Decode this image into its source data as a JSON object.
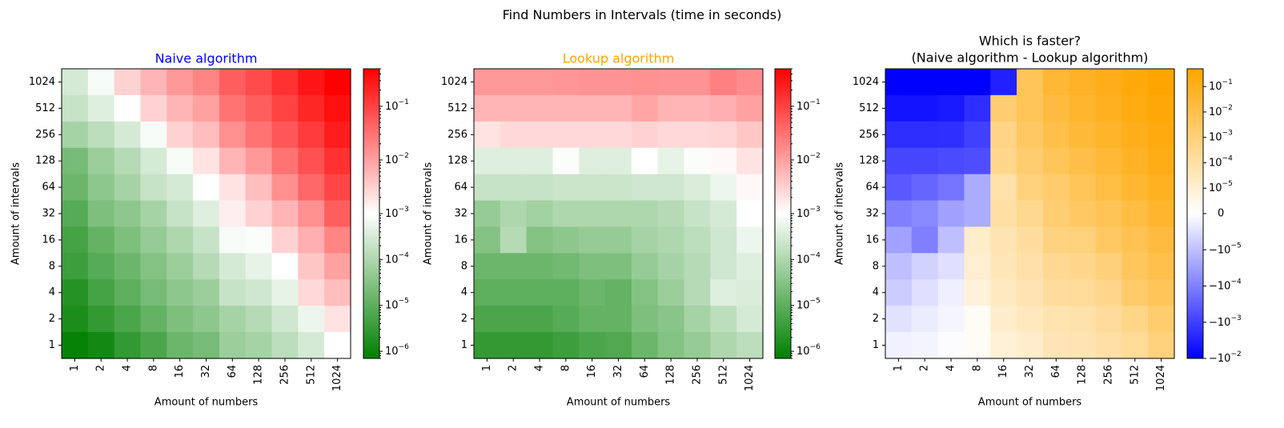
{
  "suptitle": "Find Numbers in Intervals (time in seconds)",
  "colors": {
    "naive_title": "#0000ff",
    "lookup_title": "#ffa500",
    "green": "#008000",
    "red": "#ff0000",
    "blue": "#0000ff",
    "orange": "#ffa500",
    "white": "#ffffff"
  },
  "chart_data": [
    {
      "type": "heatmap",
      "title": "Naive algorithm",
      "xlabel": "Amount of numbers",
      "ylabel": "Amount of intervals",
      "x_categories": [
        "1",
        "2",
        "4",
        "8",
        "16",
        "32",
        "64",
        "128",
        "256",
        "512",
        "1024"
      ],
      "y_categories": [
        "1024",
        "512",
        "256",
        "128",
        "64",
        "32",
        "16",
        "8",
        "4",
        "2",
        "1"
      ],
      "color_scale": "log",
      "cmap": [
        "#008000",
        "#ffffff",
        "#ff0000"
      ],
      "vmin": 7e-07,
      "vmax": 0.5,
      "colorbar_ticks": [
        "10^-6",
        "10^-5",
        "10^-4",
        "10^-3",
        "10^-2",
        "10^-1"
      ],
      "values": [
        [
          0.0003,
          0.0008,
          0.003,
          0.006,
          0.012,
          0.02,
          0.05,
          0.08,
          0.15,
          0.3,
          0.5
        ],
        [
          0.0002,
          0.0004,
          0.001,
          0.003,
          0.006,
          0.01,
          0.03,
          0.05,
          0.1,
          0.2,
          0.35
        ],
        [
          8e-05,
          0.00015,
          0.0003,
          0.0008,
          0.003,
          0.005,
          0.015,
          0.03,
          0.06,
          0.12,
          0.25
        ],
        [
          2e-05,
          6e-05,
          0.00012,
          0.0003,
          0.0008,
          0.002,
          0.006,
          0.012,
          0.03,
          0.07,
          0.15
        ],
        [
          1.5e-05,
          4e-05,
          8e-05,
          0.0002,
          0.0003,
          0.001,
          0.002,
          0.005,
          0.015,
          0.04,
          0.09
        ],
        [
          8e-06,
          2.5e-05,
          4e-05,
          8e-05,
          0.0002,
          0.0004,
          0.0015,
          0.003,
          0.006,
          0.015,
          0.05
        ],
        [
          5e-06,
          1.2e-05,
          2.5e-05,
          5e-05,
          0.0001,
          0.0002,
          0.0008,
          0.0009,
          0.003,
          0.007,
          0.02
        ],
        [
          4e-06,
          8e-06,
          1.5e-05,
          3e-05,
          6e-05,
          0.00012,
          0.0003,
          0.0005,
          0.001,
          0.004,
          0.01
        ],
        [
          2e-06,
          5e-06,
          1e-05,
          2e-05,
          4e-05,
          6e-05,
          0.0002,
          0.00025,
          0.0005,
          0.0025,
          0.005
        ],
        [
          1.5e-06,
          3e-06,
          6e-06,
          1.2e-05,
          2.5e-05,
          4e-05,
          8e-05,
          0.00012,
          0.00025,
          0.0006,
          0.002
        ],
        [
          8e-07,
          1.2e-06,
          3e-06,
          6e-06,
          1.5e-05,
          2e-05,
          6e-05,
          8e-05,
          0.00015,
          0.0003,
          0.001
        ]
      ]
    },
    {
      "type": "heatmap",
      "title": "Lookup algorithm",
      "xlabel": "Amount of numbers",
      "ylabel": "Amount of intervals",
      "x_categories": [
        "1",
        "2",
        "4",
        "8",
        "16",
        "32",
        "64",
        "128",
        "256",
        "512",
        "1024"
      ],
      "y_categories": [
        "1024",
        "512",
        "256",
        "128",
        "64",
        "32",
        "16",
        "8",
        "4",
        "2",
        "1"
      ],
      "color_scale": "log",
      "cmap": [
        "#008000",
        "#ffffff",
        "#ff0000"
      ],
      "vmin": 7e-07,
      "vmax": 0.5,
      "colorbar_ticks": [
        "10^-6",
        "10^-5",
        "10^-4",
        "10^-3",
        "10^-2",
        "10^-1"
      ],
      "values": [
        [
          0.012,
          0.012,
          0.012,
          0.013,
          0.014,
          0.014,
          0.015,
          0.014,
          0.014,
          0.022,
          0.016
        ],
        [
          0.006,
          0.006,
          0.006,
          0.006,
          0.006,
          0.006,
          0.009,
          0.006,
          0.006,
          0.007,
          0.01
        ],
        [
          0.002,
          0.0025,
          0.0025,
          0.0025,
          0.0025,
          0.0025,
          0.003,
          0.0025,
          0.0025,
          0.0028,
          0.004
        ],
        [
          0.0004,
          0.0004,
          0.0004,
          0.0009,
          0.0004,
          0.0004,
          0.001,
          0.0005,
          0.0009,
          0.0012,
          0.002
        ],
        [
          0.0002,
          0.0002,
          0.0002,
          0.00022,
          0.00022,
          0.00022,
          0.00025,
          0.00025,
          0.00035,
          0.0006,
          0.0012
        ],
        [
          5e-05,
          0.0001,
          7e-05,
          0.0001,
          0.0001,
          0.0001,
          0.0001,
          0.00012,
          0.0002,
          0.0003,
          0.001
        ],
        [
          3e-05,
          0.00012,
          3e-05,
          4e-05,
          5e-05,
          5e-05,
          8e-05,
          0.0001,
          0.00015,
          0.00025,
          0.0006
        ],
        [
          1.5e-05,
          1.5e-05,
          1.5e-05,
          1.8e-05,
          2.5e-05,
          2.5e-05,
          5e-05,
          8e-05,
          0.00012,
          0.00025,
          0.0004
        ],
        [
          1e-05,
          1e-05,
          1e-05,
          1e-05,
          1.5e-05,
          1.2e-05,
          3e-05,
          6e-05,
          0.00012,
          0.0004,
          0.00035
        ],
        [
          6e-06,
          6e-06,
          6e-06,
          8e-06,
          1.2e-05,
          1.2e-05,
          2.5e-05,
          3.5e-05,
          8e-05,
          0.00015,
          0.0003
        ],
        [
          3e-06,
          3e-06,
          3e-06,
          4e-06,
          6e-06,
          7e-06,
          1.5e-05,
          3e-05,
          5e-05,
          0.0001,
          0.00015
        ]
      ]
    },
    {
      "type": "heatmap",
      "title": "Which is faster?\n(Naive algorithm - Lookup algorithm)",
      "xlabel": "Amount of numbers",
      "ylabel": "Amount of intervals",
      "x_categories": [
        "1",
        "2",
        "4",
        "8",
        "16",
        "32",
        "64",
        "128",
        "256",
        "512",
        "1024"
      ],
      "y_categories": [
        "1024",
        "512",
        "256",
        "128",
        "64",
        "32",
        "16",
        "8",
        "4",
        "2",
        "1"
      ],
      "color_scale": "symlog",
      "linthresh": 1e-05,
      "cmap": [
        "#0000ff",
        "#ffffff",
        "#ffa500"
      ],
      "vmin": -0.01,
      "vmax": 0.5,
      "colorbar_ticks": [
        "10^-1",
        "10^-2",
        "10^-3",
        "10^-4",
        "10^-5",
        "0",
        "-10^-5",
        "-10^-4",
        "-10^-3",
        "-10^-2"
      ],
      "values": [
        [
          -0.012,
          -0.012,
          -0.012,
          -0.01,
          -0.003,
          0.005,
          0.035,
          0.07,
          0.14,
          0.28,
          0.48
        ],
        [
          -0.005,
          -0.005,
          -0.004,
          -0.002,
          0.0015,
          0.005,
          0.02,
          0.045,
          0.095,
          0.19,
          0.34
        ],
        [
          -0.002,
          -0.002,
          -0.0018,
          -0.001,
          0.0005,
          0.003,
          0.012,
          0.028,
          0.058,
          0.12,
          0.24
        ],
        [
          -0.0008,
          -0.0008,
          -0.0007,
          -0.0006,
          0.0004,
          0.0016,
          0.005,
          0.012,
          0.029,
          0.07,
          0.15
        ],
        [
          -0.0004,
          -0.00025,
          -0.00015,
          -2e-05,
          8e-05,
          0.0008,
          0.0018,
          0.005,
          0.015,
          0.04,
          0.09
        ],
        [
          -0.0001,
          -7e-05,
          -3e-05,
          -2e-05,
          0.0001,
          0.0003,
          0.0014,
          0.003,
          0.006,
          0.015,
          0.05
        ],
        [
          -3e-05,
          -0.0001,
          -1e-05,
          1.5e-05,
          5e-05,
          0.00015,
          0.0007,
          0.0008,
          0.003,
          0.007,
          0.02
        ],
        [
          -1e-05,
          -7e-06,
          -5e-06,
          1.2e-05,
          4e-05,
          9e-05,
          0.00025,
          0.0004,
          0.0009,
          0.004,
          0.01
        ],
        [
          -8e-06,
          -5e-06,
          -2.5e-06,
          8e-06,
          2.5e-05,
          5e-05,
          0.00017,
          0.00019,
          0.0004,
          0.002,
          0.005
        ],
        [
          -4.5e-06,
          -3e-06,
          -1.5e-06,
          2e-06,
          1.3e-05,
          2.8e-05,
          5.5e-05,
          8.5e-05,
          0.00017,
          0.00045,
          0.0017
        ],
        [
          -2.2e-06,
          -1.8e-06,
          -5e-07,
          2e-06,
          9e-06,
          1.3e-05,
          4.5e-05,
          5e-05,
          0.0001,
          0.0002,
          0.00085
        ]
      ]
    }
  ]
}
